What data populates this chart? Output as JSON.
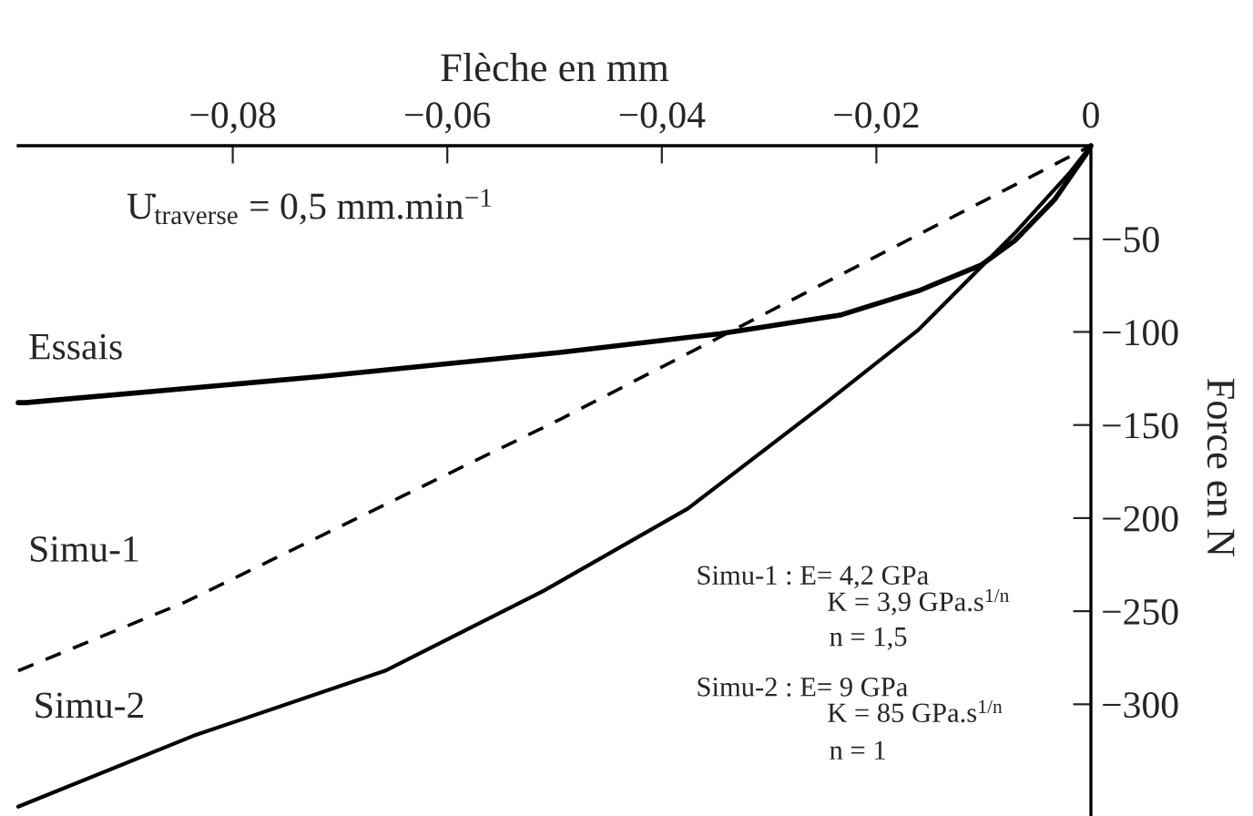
{
  "chart_data": {
    "type": "line",
    "xlabel": "Flèche en mm",
    "ylabel": "Force en N",
    "xlim": [
      -0.1,
      0
    ],
    "ylim": [
      -360,
      0
    ],
    "xticks": [
      {
        "value": -0.08,
        "label": "−0,08"
      },
      {
        "value": -0.06,
        "label": "−0,06"
      },
      {
        "value": -0.04,
        "label": "−0,04"
      },
      {
        "value": -0.02,
        "label": "−0,02"
      },
      0
    ],
    "yticks": [
      {
        "value": -50,
        "label": "−50"
      },
      {
        "value": -100,
        "label": "−100"
      },
      {
        "value": -150,
        "label": "−150"
      },
      {
        "value": -200,
        "label": "−200"
      },
      {
        "value": -250,
        "label": "−250"
      },
      {
        "value": -300,
        "label": "−300"
      }
    ],
    "grid": false,
    "legend": false,
    "series": [
      {
        "name": "Essais",
        "color": "#000000",
        "line_style": "solid",
        "x": [
          -0.1,
          -0.0993,
          -0.0719,
          -0.0495,
          -0.0346,
          -0.0234,
          -0.0161,
          -0.0102,
          -0.0071,
          -0.0034,
          -0.0005,
          0
        ],
        "values": [
          -138,
          -138,
          -124,
          -111,
          -101,
          -91,
          -78,
          -64,
          -51,
          -29,
          -5,
          0
        ]
      },
      {
        "name": "Simu-1",
        "color": "#000000",
        "line_style": "dashed",
        "x": [
          -0.1,
          -0.0844,
          -0.0495,
          -0.034,
          0
        ],
        "values": [
          -282,
          -245,
          -147,
          -101,
          0
        ]
      },
      {
        "name": "Simu-2",
        "color": "#000000",
        "line_style": "solid",
        "x": [
          -0.1,
          -0.0837,
          -0.0658,
          -0.051,
          -0.0376,
          -0.0249,
          -0.0161,
          -0.0071,
          -0.0019,
          0
        ],
        "values": [
          -355,
          -317,
          -282,
          -239,
          -195,
          -139,
          -99,
          -47,
          -14,
          0
        ]
      }
    ],
    "annotations": [
      "U̇$_{traverse}$ = 0,5 mm.min$^{−1}$",
      "Simu-1 : E= 4,2 GPa",
      "K = 3,9 GPa.s$^{1/n}$",
      "n = 1,5",
      "Simu-2 : E= 9 GPa",
      "K = 85 GPa.s$^{1/n}$",
      "n = 1"
    ]
  }
}
